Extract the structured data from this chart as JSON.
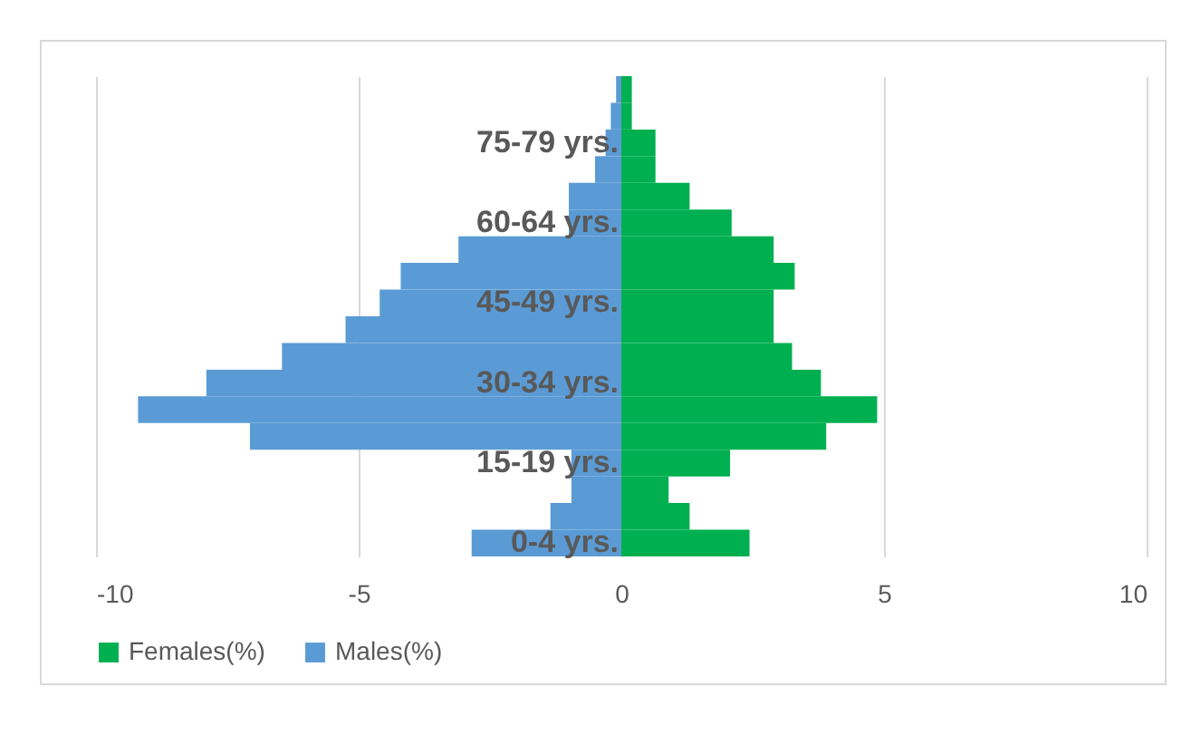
{
  "chart_data": {
    "type": "bar",
    "orientation": "horizontal",
    "categories": [
      null,
      null,
      "75-79 yrs.",
      null,
      null,
      "60-64 yrs.",
      null,
      null,
      "45-49 yrs.",
      null,
      null,
      "30-34 yrs.",
      null,
      null,
      "15-19 yrs.",
      null,
      null,
      "0-4 yrs."
    ],
    "series": [
      {
        "name": "Females(%)",
        "color": "#00b050",
        "values": [
          0.2,
          0.2,
          0.65,
          0.65,
          1.3,
          2.1,
          2.9,
          3.3,
          2.9,
          2.9,
          3.25,
          3.8,
          4.87,
          3.9,
          2.07,
          0.9,
          1.3,
          2.44
        ]
      },
      {
        "name": "Males(%)",
        "color": "#5b9bd5",
        "values": [
          -0.1,
          -0.2,
          -0.3,
          -0.5,
          -1.0,
          -1.0,
          -3.1,
          -4.2,
          -4.6,
          -5.25,
          -6.46,
          -7.9,
          -9.2,
          -7.07,
          -0.95,
          -0.95,
          -1.35,
          -2.85
        ]
      }
    ],
    "stacked": true,
    "xlim": [
      -10,
      10
    ],
    "xticks": [
      -10,
      -5,
      0,
      5,
      10
    ],
    "grid": "x",
    "legend": "bottom"
  }
}
